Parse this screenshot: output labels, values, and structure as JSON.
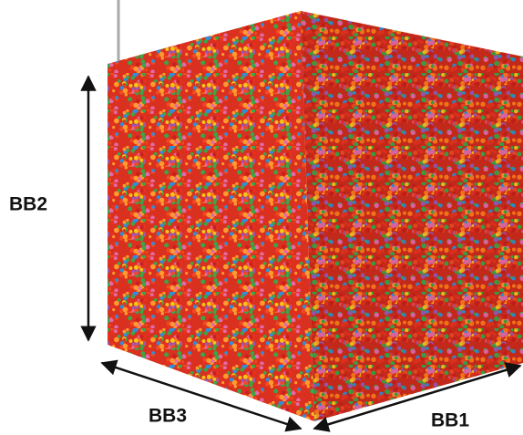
{
  "labels": {
    "bb1": "BB1",
    "bb2": "BB2",
    "bb3": "BB3"
  }
}
